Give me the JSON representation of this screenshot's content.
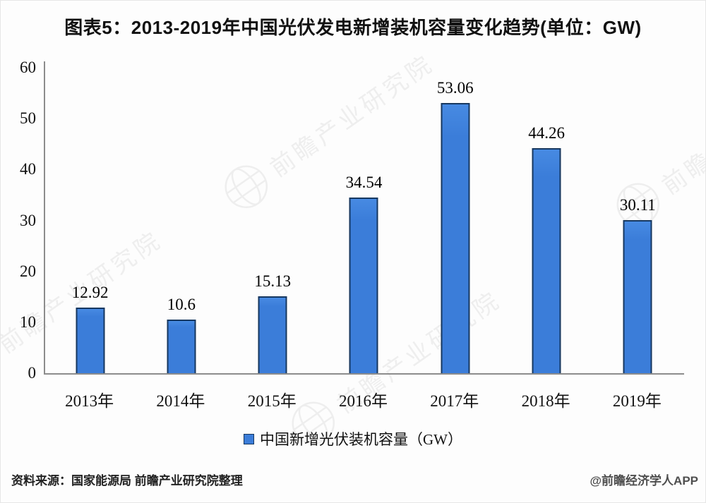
{
  "title": "图表5：2013-2019年中国光伏发电新增装机容量变化趋势(单位：GW)",
  "chart_data": {
    "type": "bar",
    "categories": [
      "2013年",
      "2014年",
      "2015年",
      "2016年",
      "2017年",
      "2018年",
      "2019年"
    ],
    "values": [
      12.92,
      10.6,
      15.13,
      34.54,
      53.06,
      44.26,
      30.11
    ],
    "value_labels": [
      "12.92",
      "10.6",
      "15.13",
      "34.54",
      "53.06",
      "44.26",
      "30.11"
    ],
    "title": "图表5：2013-2019年中国光伏发电新增装机容量变化趋势(单位：GW)",
    "xlabel": "",
    "ylabel": "",
    "y_ticks": [
      0,
      10,
      20,
      30,
      40,
      50,
      60
    ],
    "ylim": [
      0,
      60
    ],
    "grid": false,
    "legend_position": "bottom",
    "legend": "中国新增光伏装机容量（GW）",
    "bar_color": "#3b7dd9",
    "bar_border_color": "#16375f",
    "axis_color": "#8c8c8c"
  },
  "legend": {
    "label": "中国新增光伏装机容量（GW）"
  },
  "footer": {
    "source": "资料来源：国家能源局 前瞻产业研究院整理",
    "credit": "@前瞻经济学人APP"
  },
  "watermark": {
    "text": "前瞻产业研究院",
    "icon": "globe-icon"
  }
}
